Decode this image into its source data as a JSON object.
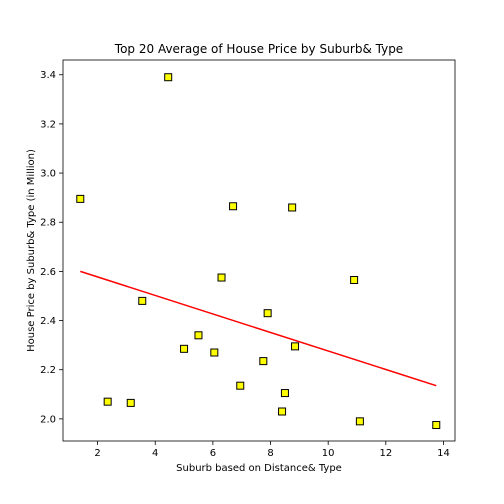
{
  "chart_data": {
    "type": "scatter",
    "title": "Top 20 Average of House Price by Suburb& Type",
    "xlabel": "Suburb based on Distance& Type",
    "ylabel": "House Price by Suburb& Type (in Million)",
    "xlim": [
      0.8,
      14.4
    ],
    "ylim": [
      1.91,
      3.46
    ],
    "xticks": [
      2,
      4,
      6,
      8,
      10,
      12,
      14
    ],
    "yticks": [
      2.0,
      2.2,
      2.4,
      2.6,
      2.8,
      3.0,
      3.2,
      3.4
    ],
    "grid": false,
    "marker": {
      "shape": "square",
      "fill": "#ffff00",
      "edge": "#000000"
    },
    "points": [
      {
        "x": 1.4,
        "y": 2.895
      },
      {
        "x": 2.35,
        "y": 2.07
      },
      {
        "x": 3.15,
        "y": 2.065
      },
      {
        "x": 3.55,
        "y": 2.48
      },
      {
        "x": 4.45,
        "y": 3.39
      },
      {
        "x": 5.0,
        "y": 2.285
      },
      {
        "x": 5.5,
        "y": 2.34
      },
      {
        "x": 6.05,
        "y": 2.27
      },
      {
        "x": 6.3,
        "y": 2.575
      },
      {
        "x": 6.7,
        "y": 2.865
      },
      {
        "x": 6.95,
        "y": 2.135
      },
      {
        "x": 7.75,
        "y": 2.235
      },
      {
        "x": 7.9,
        "y": 2.43
      },
      {
        "x": 8.4,
        "y": 2.03
      },
      {
        "x": 8.5,
        "y": 2.105
      },
      {
        "x": 8.75,
        "y": 2.86
      },
      {
        "x": 8.85,
        "y": 2.295
      },
      {
        "x": 10.9,
        "y": 2.565
      },
      {
        "x": 11.1,
        "y": 1.99
      },
      {
        "x": 13.75,
        "y": 1.975
      }
    ],
    "trendline": {
      "color": "#ff0000",
      "x": [
        1.4,
        13.75
      ],
      "y": [
        2.6,
        2.135
      ]
    }
  }
}
